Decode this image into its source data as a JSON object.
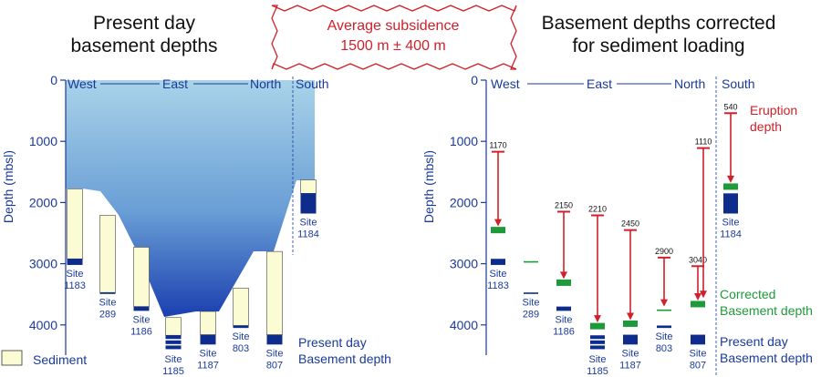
{
  "colors": {
    "navy": "#1a3a99",
    "dark_blue": "#0d2c8c",
    "red": "#d0202a",
    "green": "#1f9a3a",
    "sediment": "#fbfcd4",
    "water_top": "#a9d3e9",
    "water_bottom": "#1b3fb0"
  },
  "left_panel": {
    "title_line1": "Present day",
    "title_line2": "basement depths",
    "y_axis_label": "Depth (mbsl)",
    "y_ticks": [
      "0",
      "1000",
      "2000",
      "3000",
      "4000"
    ],
    "directions": [
      "West",
      "East",
      "North",
      "South"
    ],
    "site_word": "Site",
    "sites": [
      {
        "id": "1183",
        "sed_top": 1780,
        "base_top": 2920,
        "base_bot": 3020,
        "basement_pattern": "solid"
      },
      {
        "id": "289",
        "sed_top": 2210,
        "base_top": 3470,
        "base_bot": 3490,
        "basement_pattern": "solid"
      },
      {
        "id": "1186",
        "sed_top": 2730,
        "base_top": 3700,
        "base_bot": 3770,
        "basement_pattern": "solid"
      },
      {
        "id": "1185",
        "sed_top": 3880,
        "base_top": 4170,
        "base_bot": 4420,
        "basement_pattern": "striped"
      },
      {
        "id": "1187",
        "sed_top": 3780,
        "base_top": 4160,
        "base_bot": 4320,
        "basement_pattern": "solid"
      },
      {
        "id": "803",
        "sed_top": 3400,
        "base_top": 4010,
        "base_bot": 4050,
        "basement_pattern": "solid"
      },
      {
        "id": "807",
        "sed_top": 2800,
        "base_top": 4160,
        "base_bot": 4320,
        "basement_pattern": "solid"
      },
      {
        "id": "1184",
        "sed_top": 1630,
        "base_top": 1850,
        "base_bot": 2180,
        "basement_pattern": "solid"
      }
    ],
    "legend_sediment": "Sediment",
    "legend_basement_line1": "Present day",
    "legend_basement_line2": "Basement depth"
  },
  "center_box": {
    "line1": "Average subsidence",
    "line2": "1500 m ± 400 m"
  },
  "right_panel": {
    "title_line1": "Basement depths corrected",
    "title_line2": "for sediment loading",
    "y_axis_label": "Depth (mbsl)",
    "y_ticks": [
      "0",
      "1000",
      "2000",
      "3000",
      "4000"
    ],
    "directions": [
      "West",
      "East",
      "North",
      "South"
    ],
    "site_word": "Site",
    "sites": [
      {
        "id": "1183",
        "eruption": 1170,
        "corrected": 2450,
        "base_top": 2920,
        "base_bot": 3020,
        "basement_pattern": "solid"
      },
      {
        "id": "289",
        "eruption": null,
        "corrected": 2970,
        "base_top": 3470,
        "base_bot": 3490,
        "basement_pattern": "solid"
      },
      {
        "id": "1186",
        "eruption": 2150,
        "corrected": 3310,
        "base_top": 3700,
        "base_bot": 3770,
        "basement_pattern": "solid"
      },
      {
        "id": "1185",
        "eruption": 2210,
        "corrected": 4020,
        "base_top": 4170,
        "base_bot": 4420,
        "basement_pattern": "striped"
      },
      {
        "id": "1187",
        "eruption": 2450,
        "corrected": 3980,
        "base_top": 4160,
        "base_bot": 4320,
        "basement_pattern": "solid"
      },
      {
        "id": "803",
        "eruption": 2900,
        "corrected": 3760,
        "base_top": 4010,
        "base_bot": 4050,
        "basement_pattern": "solid"
      },
      {
        "id": "807",
        "eruption": 3040,
        "corrected": 3660,
        "base_top": 4160,
        "base_bot": 4320,
        "basement_pattern": "solid"
      },
      {
        "id": "1184",
        "eruption": 540,
        "corrected": 1740,
        "base_top": 1850,
        "base_bot": 2180,
        "basement_pattern": "solid"
      }
    ],
    "extra_eruption": {
      "label": "1110",
      "value": 1110
    },
    "legend_eruption_line1": "Eruption",
    "legend_eruption_line2": "depth",
    "legend_corrected_line1": "Corrected",
    "legend_corrected_line2": "Basement depth",
    "legend_basement_line1": "Present day",
    "legend_basement_line2": "Basement depth"
  }
}
